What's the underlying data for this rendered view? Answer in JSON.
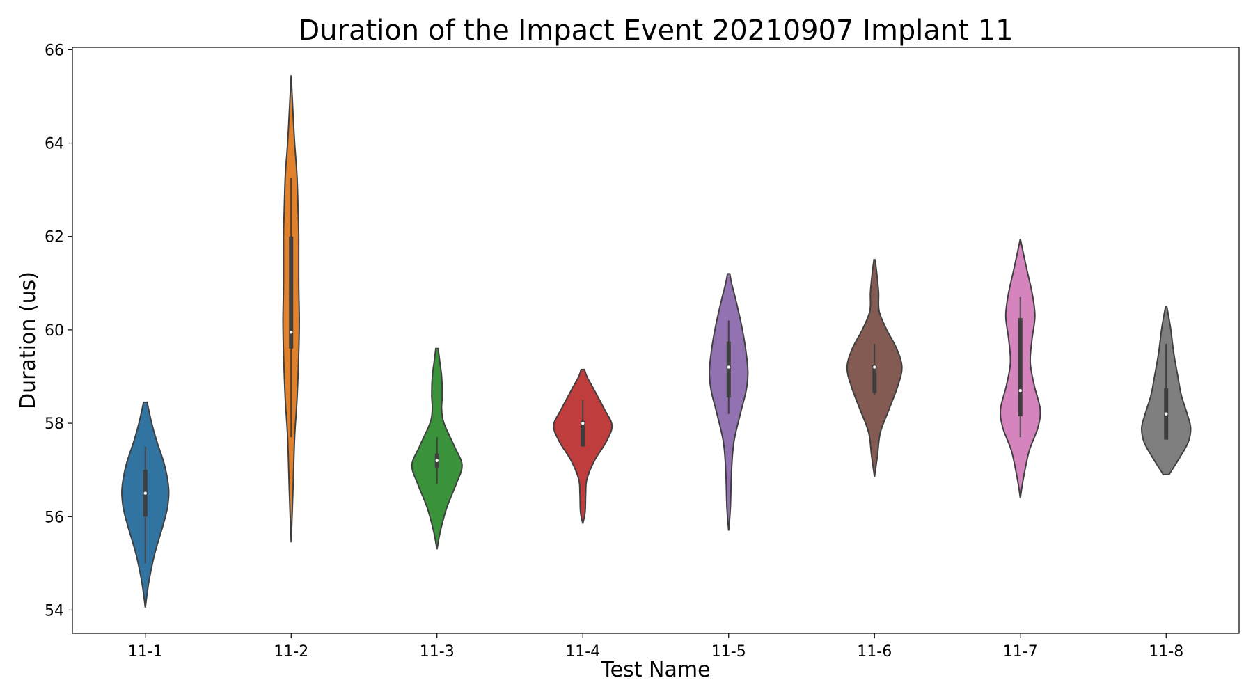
{
  "chart_data": {
    "type": "violin",
    "title": "Duration of the Impact Event 20210907 Implant 11",
    "xlabel": "Test Name",
    "ylabel": "Duration (us)",
    "ylim": [
      53.5,
      66.05
    ],
    "yticks": [
      54,
      56,
      58,
      60,
      62,
      64,
      66
    ],
    "categories": [
      "11-1",
      "11-2",
      "11-3",
      "11-4",
      "11-5",
      "11-6",
      "11-7",
      "11-8"
    ],
    "series": [
      {
        "category": "11-1",
        "color": "#3274a1",
        "min": 54.05,
        "max": 58.45,
        "whisker_low": 55.0,
        "q1": 56.0,
        "median": 56.5,
        "q3": 57.0,
        "whisker_high": 57.5,
        "density": [
          [
            54.05,
            0.0
          ],
          [
            54.6,
            0.06
          ],
          [
            55.2,
            0.16
          ],
          [
            55.8,
            0.3
          ],
          [
            56.2,
            0.38
          ],
          [
            56.6,
            0.4
          ],
          [
            57.1,
            0.33
          ],
          [
            57.6,
            0.2
          ],
          [
            58.0,
            0.11
          ],
          [
            58.45,
            0.03
          ]
        ]
      },
      {
        "category": "11-2",
        "color": "#e1812c",
        "min": 55.45,
        "max": 65.45,
        "whisker_low": 57.7,
        "q1": 59.6,
        "median": 59.95,
        "q3": 62.0,
        "whisker_high": 63.25,
        "density": [
          [
            55.45,
            0.0
          ],
          [
            56.5,
            0.03
          ],
          [
            57.7,
            0.06
          ],
          [
            58.5,
            0.1
          ],
          [
            59.5,
            0.13
          ],
          [
            60.2,
            0.14
          ],
          [
            61.0,
            0.13
          ],
          [
            62.0,
            0.13
          ],
          [
            62.5,
            0.12
          ],
          [
            63.3,
            0.1
          ],
          [
            64.0,
            0.06
          ],
          [
            64.7,
            0.03
          ],
          [
            65.45,
            0.0
          ]
        ]
      },
      {
        "category": "11-3",
        "color": "#3a923a",
        "min": 55.3,
        "max": 59.6,
        "whisker_low": 56.7,
        "q1": 57.05,
        "median": 57.2,
        "q3": 57.35,
        "whisker_high": 57.7,
        "density": [
          [
            55.3,
            0.0
          ],
          [
            55.7,
            0.06
          ],
          [
            56.2,
            0.17
          ],
          [
            56.7,
            0.33
          ],
          [
            57.1,
            0.43
          ],
          [
            57.5,
            0.3
          ],
          [
            58.0,
            0.12
          ],
          [
            58.3,
            0.08
          ],
          [
            58.6,
            0.09
          ],
          [
            59.0,
            0.08
          ],
          [
            59.3,
            0.05
          ],
          [
            59.6,
            0.02
          ]
        ]
      },
      {
        "category": "11-4",
        "color": "#c03d3e",
        "min": 55.85,
        "max": 59.15,
        "whisker_low": 57.5,
        "q1": 57.5,
        "median": 58.0,
        "q3": 58.05,
        "whisker_high": 58.5,
        "density": [
          [
            55.85,
            0.0
          ],
          [
            56.1,
            0.04
          ],
          [
            56.5,
            0.05
          ],
          [
            56.8,
            0.07
          ],
          [
            57.2,
            0.2
          ],
          [
            57.6,
            0.4
          ],
          [
            57.95,
            0.5
          ],
          [
            58.3,
            0.37
          ],
          [
            58.7,
            0.2
          ],
          [
            59.0,
            0.07
          ],
          [
            59.15,
            0.03
          ]
        ]
      },
      {
        "category": "11-5",
        "color": "#9372b2",
        "min": 55.7,
        "max": 61.2,
        "whisker_low": 58.2,
        "q1": 58.55,
        "median": 59.2,
        "q3": 59.75,
        "whisker_high": 60.2,
        "density": [
          [
            55.7,
            0.0
          ],
          [
            56.2,
            0.03
          ],
          [
            57.0,
            0.05
          ],
          [
            57.6,
            0.09
          ],
          [
            58.2,
            0.2
          ],
          [
            58.7,
            0.3
          ],
          [
            59.1,
            0.33
          ],
          [
            59.6,
            0.29
          ],
          [
            60.1,
            0.22
          ],
          [
            60.6,
            0.13
          ],
          [
            61.0,
            0.05
          ],
          [
            61.2,
            0.02
          ]
        ]
      },
      {
        "category": "11-6",
        "color": "#845b53",
        "min": 56.85,
        "max": 61.5,
        "whisker_low": 58.6,
        "q1": 58.65,
        "median": 59.2,
        "q3": 59.25,
        "whisker_high": 59.7,
        "density": [
          [
            56.85,
            0.0
          ],
          [
            57.3,
            0.05
          ],
          [
            57.8,
            0.1
          ],
          [
            58.3,
            0.25
          ],
          [
            58.8,
            0.4
          ],
          [
            59.2,
            0.47
          ],
          [
            59.6,
            0.38
          ],
          [
            60.0,
            0.21
          ],
          [
            60.4,
            0.08
          ],
          [
            60.8,
            0.07
          ],
          [
            61.2,
            0.04
          ],
          [
            61.5,
            0.01
          ]
        ]
      },
      {
        "category": "11-7",
        "color": "#d684bd",
        "min": 56.4,
        "max": 61.95,
        "whisker_low": 57.7,
        "q1": 58.15,
        "median": 58.7,
        "q3": 60.25,
        "whisker_high": 60.7,
        "density": [
          [
            56.4,
            0.0
          ],
          [
            56.8,
            0.05
          ],
          [
            57.4,
            0.15
          ],
          [
            57.9,
            0.3
          ],
          [
            58.3,
            0.34
          ],
          [
            58.8,
            0.24
          ],
          [
            59.3,
            0.17
          ],
          [
            59.8,
            0.2
          ],
          [
            60.3,
            0.25
          ],
          [
            60.8,
            0.2
          ],
          [
            61.3,
            0.11
          ],
          [
            61.95,
            0.0
          ]
        ]
      },
      {
        "category": "11-8",
        "color": "#7f7f7f",
        "min": 56.9,
        "max": 60.5,
        "whisker_low": 57.65,
        "q1": 57.65,
        "median": 58.2,
        "q3": 58.75,
        "whisker_high": 59.7,
        "density": [
          [
            56.9,
            0.05
          ],
          [
            57.3,
            0.25
          ],
          [
            57.6,
            0.38
          ],
          [
            57.9,
            0.42
          ],
          [
            58.2,
            0.36
          ],
          [
            58.6,
            0.26
          ],
          [
            59.0,
            0.2
          ],
          [
            59.5,
            0.13
          ],
          [
            60.0,
            0.08
          ],
          [
            60.3,
            0.04
          ],
          [
            60.5,
            0.01
          ]
        ]
      }
    ]
  }
}
